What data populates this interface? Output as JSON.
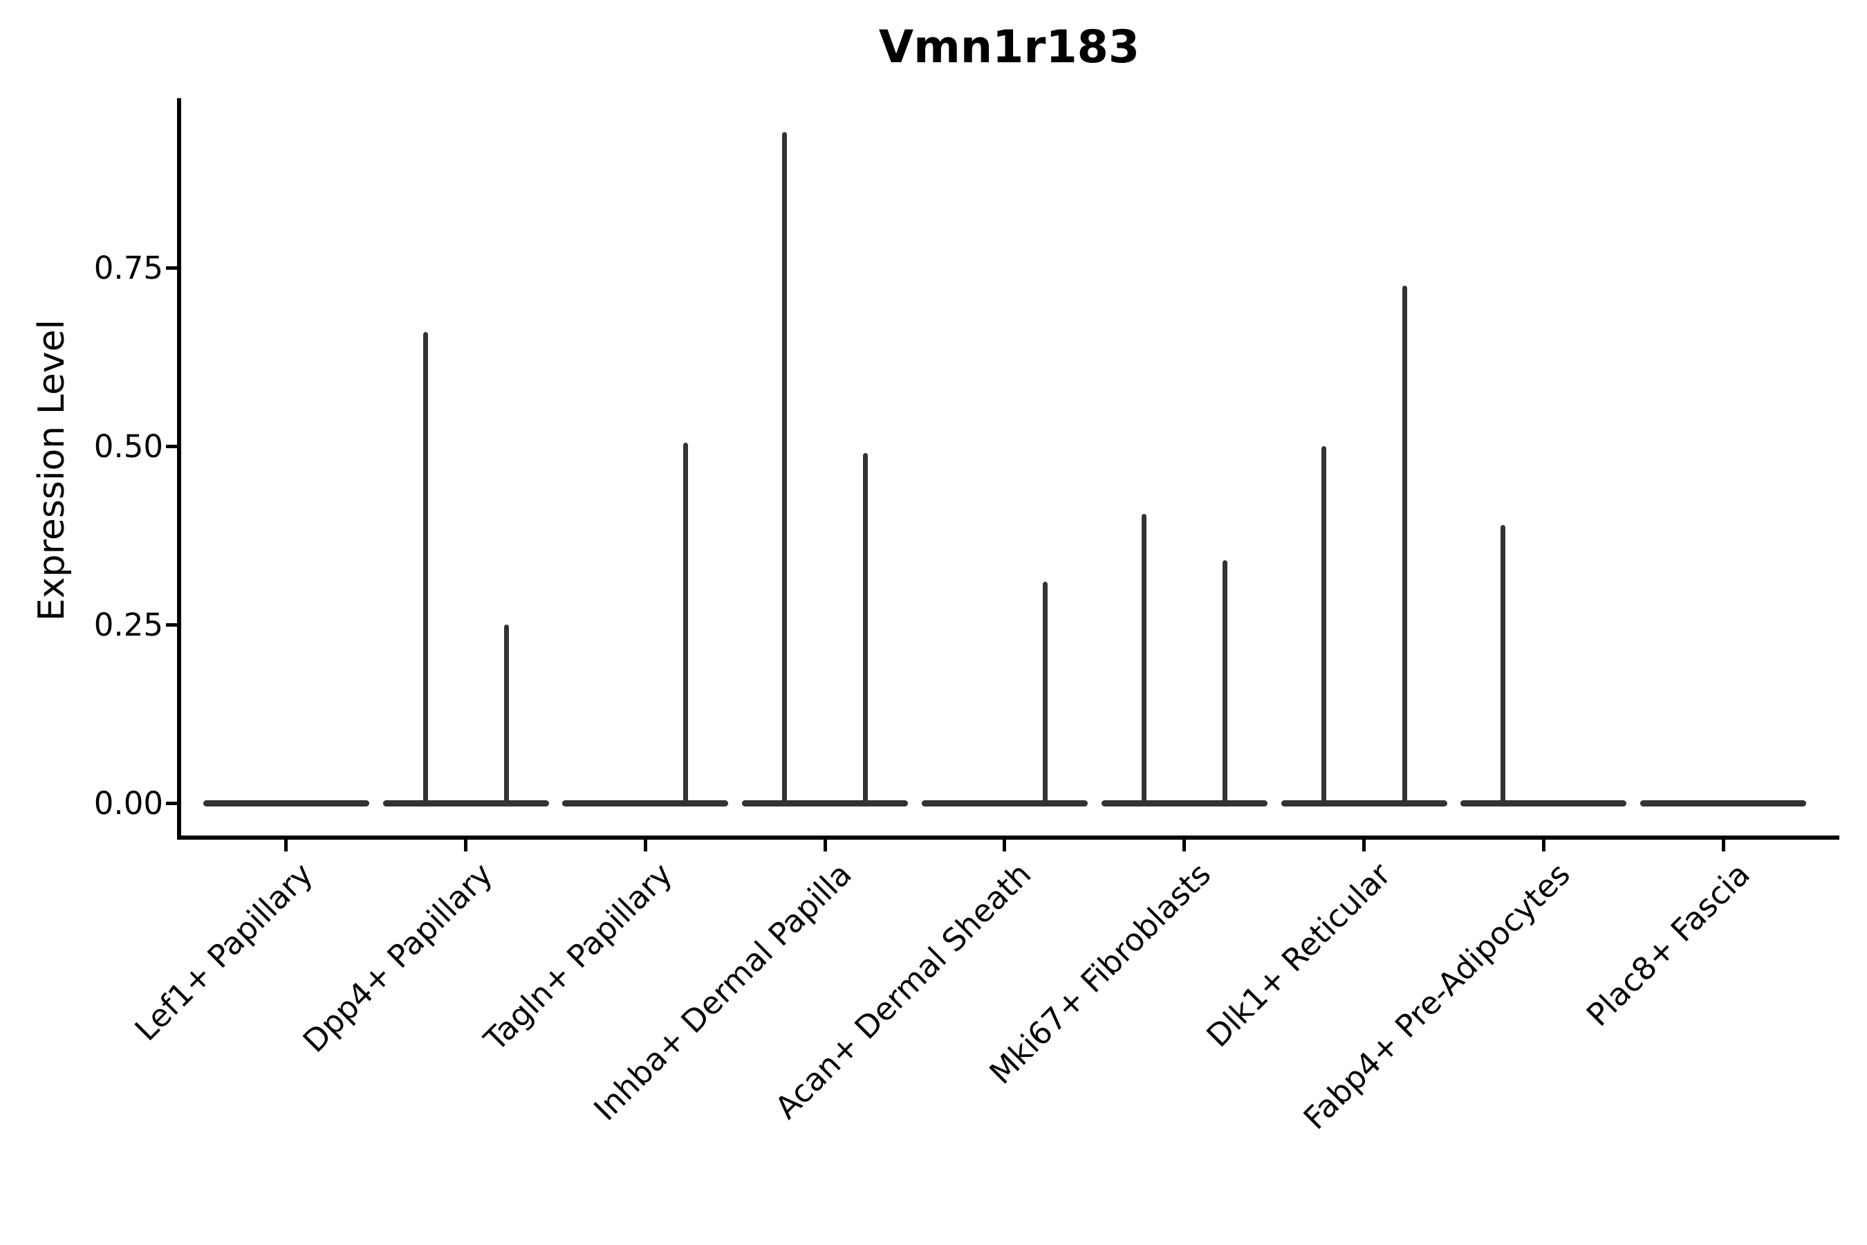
{
  "figure": {
    "title": "Vmn1r183",
    "y_axis_label": "Expression Level"
  },
  "colors": {
    "violin_fill": "#333333",
    "axis": "#000000",
    "text": "#000000",
    "background": "#ffffff"
  },
  "chart_data": {
    "type": "violin",
    "title": "Vmn1r183",
    "xlabel": "",
    "ylabel": "Expression Level",
    "ytick_labels": [
      "0.00",
      "0.25",
      "0.50",
      "0.75"
    ],
    "ylim": [
      -0.045,
      0.99
    ],
    "grid": false,
    "legend": "none",
    "x_tick_rotation_deg": 45,
    "categories": [
      "Lef1+ Papillary",
      "Dpp4+ Papillary",
      "Tagln+ Papillary",
      "Inhba+ Dermal Papilla",
      "Acan+ Dermal Sheath",
      "Mki67+ Fibroblasts",
      "Dlk1+ Reticular",
      "Fabp4+ Pre-Adipocytes",
      "Plac8+ Fascia"
    ],
    "description": "Violin plot of expression level per cluster; each cluster shows a flat density bar at 0 with thin spikes reaching the maximum expression of rare expressing cells. Spike 'pos' is the sub-violin position within the category (-1 = left, +1 = right), 'value' is the spike top in expression units.",
    "violins": [
      {
        "category": "Lef1+ Papillary",
        "baseline": 0,
        "spikes": []
      },
      {
        "category": "Dpp4+ Papillary",
        "baseline": 0,
        "spikes": [
          {
            "pos": -1,
            "value": 0.66
          },
          {
            "pos": 1,
            "value": 0.25
          }
        ]
      },
      {
        "category": "Tagln+ Papillary",
        "baseline": 0,
        "spikes": [
          {
            "pos": 1,
            "value": 0.505
          }
        ]
      },
      {
        "category": "Inhba+ Dermal Papilla",
        "baseline": 0,
        "spikes": [
          {
            "pos": -1,
            "value": 0.94
          },
          {
            "pos": 1,
            "value": 0.49
          }
        ]
      },
      {
        "category": "Acan+ Dermal Sheath",
        "baseline": 0,
        "spikes": [
          {
            "pos": 1,
            "value": 0.31
          }
        ]
      },
      {
        "category": "Mki67+ Fibroblasts",
        "baseline": 0,
        "spikes": [
          {
            "pos": -1,
            "value": 0.405
          },
          {
            "pos": 1,
            "value": 0.34
          }
        ]
      },
      {
        "category": "Dlk1+ Reticular",
        "baseline": 0,
        "spikes": [
          {
            "pos": -1,
            "value": 0.5
          },
          {
            "pos": 1,
            "value": 0.725
          }
        ]
      },
      {
        "category": "Fabp4+ Pre-Adipocytes",
        "baseline": 0,
        "spikes": [
          {
            "pos": -1,
            "value": 0.39
          }
        ]
      },
      {
        "category": "Plac8+ Fascia",
        "baseline": 0,
        "spikes": []
      }
    ]
  }
}
